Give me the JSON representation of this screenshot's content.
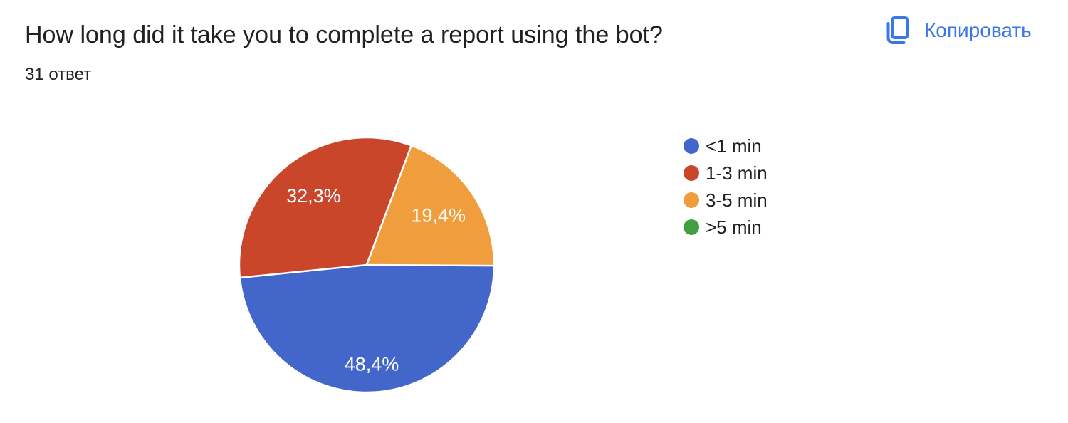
{
  "header": {
    "title": "How long did it take you to complete a report using the bot?",
    "responses_count": "31 ответ",
    "copy_label": "Копировать"
  },
  "colors": {
    "accent_blue": "#3B78E7",
    "text_dark": "#202124",
    "slice_label_white": "#ffffff"
  },
  "chart_data": {
    "type": "pie",
    "title": "How long did it take you to complete a report using the bot?",
    "subtitle": "31 ответ",
    "legend_position": "right",
    "start_angle_clockwise_from_north": 90,
    "direction": "clockwise",
    "categories": [
      "<1 min",
      "1-3 min",
      "3-5 min",
      ">5 min"
    ],
    "values": [
      48.4,
      32.3,
      19.4,
      0
    ],
    "slice_labels": [
      "48,4%",
      "32,3%",
      "19,4%",
      ""
    ],
    "colors": [
      "#4266C9",
      "#C9462B",
      "#F09D3E",
      "#419F42"
    ]
  }
}
